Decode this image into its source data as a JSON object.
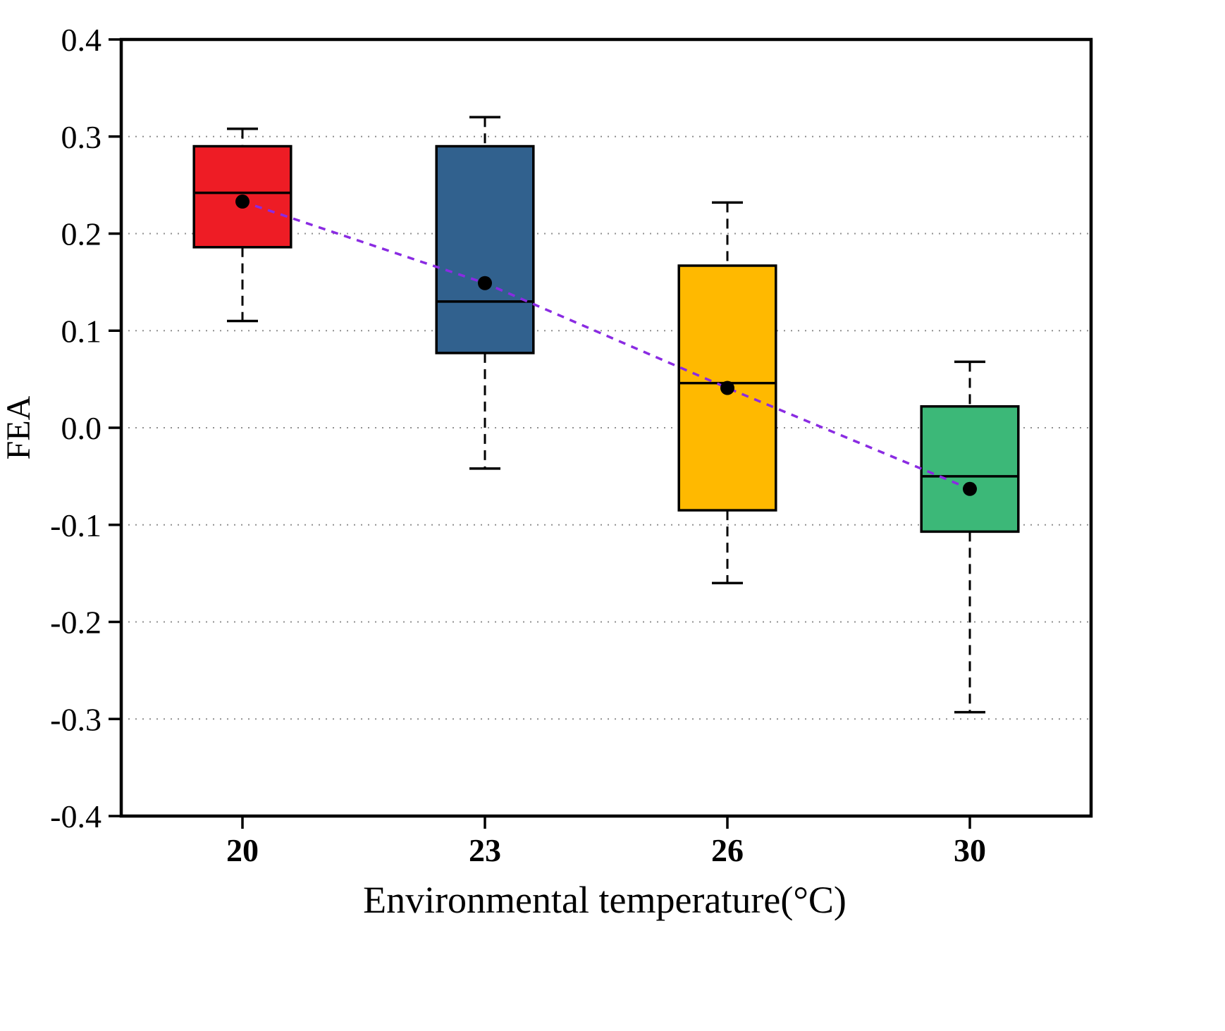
{
  "chart_data": {
    "type": "boxplot",
    "title": "",
    "xlabel": "Environmental temperature(°C)",
    "ylabel": "FEA",
    "categories": [
      "20",
      "23",
      "26",
      "30"
    ],
    "ylim": [
      -0.4,
      0.4
    ],
    "y_ticks": [
      0.4,
      0.3,
      0.2,
      0.1,
      0.0,
      -0.1,
      -0.2,
      -0.3,
      -0.4
    ],
    "y_tick_labels": [
      "0.4",
      "0.3",
      "0.2",
      "0.1",
      "0.0",
      "-0.1",
      "-0.2",
      "-0.3",
      "-0.4"
    ],
    "gridlines": [
      0.3,
      0.2,
      0.1,
      0.0,
      -0.1,
      -0.2,
      -0.3
    ],
    "grid": true,
    "legend": "none",
    "boxes": [
      {
        "category": "20",
        "whisker_low": 0.11,
        "q1": 0.186,
        "median": 0.242,
        "q3": 0.29,
        "whisker_high": 0.308,
        "mean": 0.233,
        "fill": "#ee1c25"
      },
      {
        "category": "23",
        "whisker_low": -0.042,
        "q1": 0.077,
        "median": 0.13,
        "q3": 0.29,
        "whisker_high": 0.32,
        "mean": 0.149,
        "fill": "#31618e"
      },
      {
        "category": "26",
        "whisker_low": -0.16,
        "q1": -0.085,
        "median": 0.046,
        "q3": 0.167,
        "whisker_high": 0.232,
        "mean": 0.041,
        "fill": "#ffb900"
      },
      {
        "category": "30",
        "whisker_low": -0.293,
        "q1": -0.107,
        "median": -0.05,
        "q3": 0.022,
        "whisker_high": 0.068,
        "mean": -0.063,
        "fill": "#3cb878"
      }
    ],
    "mean_trend": {
      "color": "#8a2be2",
      "line_style": "dashed",
      "marker": "filled-circle"
    },
    "colors": {
      "axis": "#000000",
      "gridline": "#909090",
      "mean_marker": "#000000",
      "whisker": "#000000"
    }
  }
}
